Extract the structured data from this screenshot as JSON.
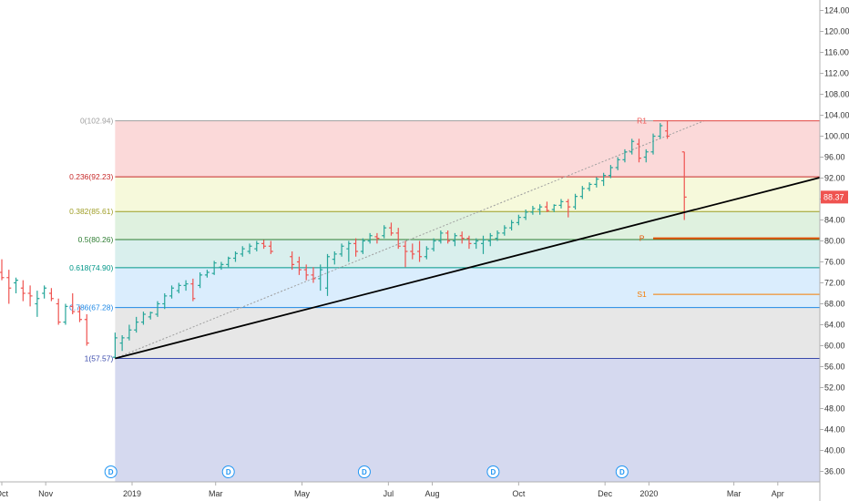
{
  "chart_data": {
    "type": "ohlc",
    "ylim": [
      34,
      126
    ],
    "y_ticks": [
      "36.00",
      "40.00",
      "44.00",
      "48.00",
      "52.00",
      "56.00",
      "60.00",
      "64.00",
      "68.00",
      "72.00",
      "76.00",
      "80.00",
      "84.00",
      "88.00",
      "92.00",
      "96.00",
      "100.00",
      "104.00",
      "108.00",
      "112.00",
      "116.00",
      "120.00",
      "124.00"
    ],
    "x_ticks": [
      {
        "label": "Oct",
        "x": 0
      },
      {
        "label": "Nov",
        "x": 31
      },
      {
        "label": "2019",
        "x": 92
      },
      {
        "label": "Mar",
        "x": 151
      },
      {
        "label": "May",
        "x": 212
      },
      {
        "label": "Jul",
        "x": 273
      },
      {
        "label": "Aug",
        "x": 304
      },
      {
        "label": "Oct",
        "x": 365
      },
      {
        "label": "Dec",
        "x": 426
      },
      {
        "label": "2020",
        "x": 457
      },
      {
        "label": "Mar",
        "x": 517
      },
      {
        "label": "Apr",
        "x": 548
      }
    ],
    "x_max": 579,
    "current_price": "88.37",
    "current_price_color": "#ef5350",
    "fib_retracement": {
      "x_start": 80,
      "levels": [
        {
          "ratio": 0,
          "price": 102.94,
          "label": "0(102.94)",
          "color": "#9e9e9e",
          "fill": "rgba(239,83,80,0.22)"
        },
        {
          "ratio": 0.236,
          "price": 92.23,
          "label": "0.236(92.23)",
          "color": "#c62828",
          "fill": "rgba(205,220,57,0.18)"
        },
        {
          "ratio": 0.382,
          "price": 85.61,
          "label": "0.382(85.61)",
          "color": "#9e9d24",
          "fill": "rgba(76,175,80,0.18)"
        },
        {
          "ratio": 0.5,
          "price": 80.26,
          "label": "0.5(80.26)",
          "color": "#2e7d32",
          "fill": "rgba(0,150,136,0.15)"
        },
        {
          "ratio": 0.618,
          "price": 74.9,
          "label": "0.618(74.90)",
          "color": "#009688",
          "fill": "rgba(33,150,243,0.17)"
        },
        {
          "ratio": 0.786,
          "price": 67.28,
          "label": "0.786(67.28)",
          "color": "#1e88e5",
          "fill": "rgba(120,120,120,0.18)"
        },
        {
          "ratio": 1,
          "price": 57.57,
          "label": "1(57.57)",
          "color": "#3949ab",
          "fill": "rgba(63,81,181,0.22)"
        }
      ]
    },
    "trendline": {
      "x1": 80,
      "y1": 57.57,
      "x2": 585,
      "y2": 92.6,
      "color": "#000000"
    },
    "diagonal": {
      "x1": 80,
      "y1": 57.57,
      "x2": 496,
      "y2": 102.94,
      "color": "#9e9e9e"
    },
    "pivots": [
      {
        "label": "R1",
        "price": 102.94,
        "x": 452,
        "x_line_start": 460,
        "color": "#ef5350",
        "width": 1
      },
      {
        "label": "P",
        "price": 80.5,
        "x": 452,
        "x_line_start": 460,
        "color": "#e65100",
        "width": 2
      },
      {
        "label": "S1",
        "price": 69.8,
        "x": 452,
        "x_line_start": 460,
        "color": "#f57c00",
        "width": 1
      }
    ],
    "dividends": [
      {
        "label": "D",
        "x": 77
      },
      {
        "label": "D",
        "x": 160
      },
      {
        "label": "D",
        "x": 256
      },
      {
        "label": "D",
        "x": 347
      },
      {
        "label": "D",
        "x": 438
      }
    ],
    "candles": [
      {
        "x": 0,
        "o": 74,
        "h": 76.5,
        "l": 72.5,
        "c": 73
      },
      {
        "x": 5,
        "o": 73,
        "h": 74.5,
        "l": 68,
        "c": 71
      },
      {
        "x": 10,
        "o": 72,
        "h": 73,
        "l": 70,
        "c": 72.5
      },
      {
        "x": 15,
        "o": 71,
        "h": 72.5,
        "l": 68.5,
        "c": 70
      },
      {
        "x": 20,
        "o": 70,
        "h": 71.5,
        "l": 67.5,
        "c": 69.5
      },
      {
        "x": 25,
        "o": 68,
        "h": 70.5,
        "l": 65.5,
        "c": 69
      },
      {
        "x": 30,
        "o": 70,
        "h": 71.5,
        "l": 69,
        "c": 71
      },
      {
        "x": 35,
        "o": 70,
        "h": 71,
        "l": 68.5,
        "c": 69
      },
      {
        "x": 40,
        "o": 68,
        "h": 69,
        "l": 64,
        "c": 64.5
      },
      {
        "x": 45,
        "o": 64.5,
        "h": 68,
        "l": 64,
        "c": 67.5
      },
      {
        "x": 50,
        "o": 67.5,
        "h": 70,
        "l": 66,
        "c": 66.5
      },
      {
        "x": 55,
        "o": 66.5,
        "h": 67.5,
        "l": 64.5,
        "c": 65
      },
      {
        "x": 60,
        "o": 65,
        "h": 66,
        "l": 60,
        "c": 60.5
      },
      {
        "x": 80,
        "o": 57.8,
        "h": 62.5,
        "l": 57.6,
        "c": 61.5
      },
      {
        "x": 85,
        "o": 60.5,
        "h": 62,
        "l": 59,
        "c": 61.5
      },
      {
        "x": 90,
        "o": 61.5,
        "h": 64,
        "l": 61,
        "c": 63
      },
      {
        "x": 95,
        "o": 63,
        "h": 65.5,
        "l": 62.5,
        "c": 64.5
      },
      {
        "x": 100,
        "o": 64.5,
        "h": 66.5,
        "l": 64,
        "c": 66
      },
      {
        "x": 105,
        "o": 65.5,
        "h": 66.5,
        "l": 65,
        "c": 66.3
      },
      {
        "x": 110,
        "o": 66,
        "h": 68.5,
        "l": 65.5,
        "c": 68
      },
      {
        "x": 115,
        "o": 68,
        "h": 70,
        "l": 67,
        "c": 69.5
      },
      {
        "x": 120,
        "o": 69.5,
        "h": 71.5,
        "l": 69,
        "c": 71
      },
      {
        "x": 125,
        "o": 70.5,
        "h": 72,
        "l": 70,
        "c": 71.5
      },
      {
        "x": 130,
        "o": 71.5,
        "h": 72.5,
        "l": 70.5,
        "c": 71.8
      },
      {
        "x": 135,
        "o": 71.8,
        "h": 72.8,
        "l": 68.5,
        "c": 69
      },
      {
        "x": 140,
        "o": 71.5,
        "h": 74,
        "l": 71,
        "c": 73.5
      },
      {
        "x": 145,
        "o": 73.5,
        "h": 74.5,
        "l": 73,
        "c": 74
      },
      {
        "x": 150,
        "o": 73.8,
        "h": 76.2,
        "l": 73.5,
        "c": 75.8
      },
      {
        "x": 155,
        "o": 75,
        "h": 76,
        "l": 74.5,
        "c": 75.5
      },
      {
        "x": 160,
        "o": 75.5,
        "h": 77,
        "l": 75,
        "c": 76.7
      },
      {
        "x": 165,
        "o": 76.7,
        "h": 78,
        "l": 76,
        "c": 77.6
      },
      {
        "x": 170,
        "o": 77.5,
        "h": 79,
        "l": 77,
        "c": 78.5
      },
      {
        "x": 175,
        "o": 78,
        "h": 79.5,
        "l": 77.5,
        "c": 79
      },
      {
        "x": 180,
        "o": 78.5,
        "h": 80,
        "l": 78,
        "c": 79.5
      },
      {
        "x": 185,
        "o": 79.5,
        "h": 80.2,
        "l": 78.5,
        "c": 79
      },
      {
        "x": 190,
        "o": 79,
        "h": 80,
        "l": 77.5,
        "c": 78
      },
      {
        "x": 205,
        "o": 77,
        "h": 78,
        "l": 74.5,
        "c": 75.5
      },
      {
        "x": 210,
        "o": 76,
        "h": 77,
        "l": 73.5,
        "c": 74.5
      },
      {
        "x": 215,
        "o": 74.5,
        "h": 75.5,
        "l": 72.5,
        "c": 73.5
      },
      {
        "x": 220,
        "o": 73.5,
        "h": 75,
        "l": 72,
        "c": 72.8
      },
      {
        "x": 225,
        "o": 72.8,
        "h": 75.5,
        "l": 70.5,
        "c": 74.5
      },
      {
        "x": 230,
        "o": 71,
        "h": 77.5,
        "l": 69.5,
        "c": 77
      },
      {
        "x": 235,
        "o": 76.5,
        "h": 78,
        "l": 75.5,
        "c": 77.5
      },
      {
        "x": 240,
        "o": 77.5,
        "h": 79.5,
        "l": 77,
        "c": 79
      },
      {
        "x": 245,
        "o": 78.5,
        "h": 80,
        "l": 76,
        "c": 79.5
      },
      {
        "x": 250,
        "o": 79.5,
        "h": 80.5,
        "l": 77,
        "c": 78
      },
      {
        "x": 255,
        "o": 78,
        "h": 80.5,
        "l": 77.5,
        "c": 80
      },
      {
        "x": 260,
        "o": 80,
        "h": 81.5,
        "l": 79.5,
        "c": 81
      },
      {
        "x": 265,
        "o": 80.8,
        "h": 81.5,
        "l": 79.5,
        "c": 80.5
      },
      {
        "x": 270,
        "o": 81,
        "h": 83,
        "l": 80.5,
        "c": 82.5
      },
      {
        "x": 275,
        "o": 82.5,
        "h": 83.5,
        "l": 81,
        "c": 81.5
      },
      {
        "x": 280,
        "o": 81.5,
        "h": 82.5,
        "l": 78.5,
        "c": 79
      },
      {
        "x": 285,
        "o": 79,
        "h": 80,
        "l": 75,
        "c": 78
      },
      {
        "x": 290,
        "o": 78,
        "h": 79.5,
        "l": 76.5,
        "c": 77.5
      },
      {
        "x": 295,
        "o": 78,
        "h": 80,
        "l": 76,
        "c": 77
      },
      {
        "x": 300,
        "o": 77,
        "h": 79,
        "l": 76.5,
        "c": 78.5
      },
      {
        "x": 305,
        "o": 78.5,
        "h": 80.5,
        "l": 78,
        "c": 80
      },
      {
        "x": 310,
        "o": 80,
        "h": 82,
        "l": 79.5,
        "c": 81.5
      },
      {
        "x": 315,
        "o": 81.5,
        "h": 82,
        "l": 79.5,
        "c": 80
      },
      {
        "x": 320,
        "o": 80,
        "h": 81.5,
        "l": 79,
        "c": 81
      },
      {
        "x": 325,
        "o": 81,
        "h": 81.8,
        "l": 79.5,
        "c": 80.5
      },
      {
        "x": 330,
        "o": 80.5,
        "h": 81,
        "l": 78.5,
        "c": 79.5
      },
      {
        "x": 335,
        "o": 79.5,
        "h": 80.5,
        "l": 78.5,
        "c": 80
      },
      {
        "x": 340,
        "o": 79.5,
        "h": 81,
        "l": 77.5,
        "c": 80.2
      },
      {
        "x": 345,
        "o": 80,
        "h": 81.5,
        "l": 79,
        "c": 81
      },
      {
        "x": 350,
        "o": 80.5,
        "h": 82,
        "l": 80,
        "c": 81.5
      },
      {
        "x": 355,
        "o": 81.5,
        "h": 83,
        "l": 81,
        "c": 82.5
      },
      {
        "x": 360,
        "o": 82.5,
        "h": 84,
        "l": 82,
        "c": 83.5
      },
      {
        "x": 365,
        "o": 83.5,
        "h": 85,
        "l": 83,
        "c": 84.5
      },
      {
        "x": 370,
        "o": 84.5,
        "h": 86,
        "l": 84,
        "c": 85.5
      },
      {
        "x": 375,
        "o": 85.5,
        "h": 86.7,
        "l": 85,
        "c": 86.2
      },
      {
        "x": 380,
        "o": 86,
        "h": 87,
        "l": 85,
        "c": 86.5
      },
      {
        "x": 385,
        "o": 86.5,
        "h": 87.5,
        "l": 85.5,
        "c": 85.8
      },
      {
        "x": 390,
        "o": 86,
        "h": 87,
        "l": 85.5,
        "c": 86.8
      },
      {
        "x": 395,
        "o": 86.8,
        "h": 88,
        "l": 86.2,
        "c": 87.5
      },
      {
        "x": 400,
        "o": 87.5,
        "h": 88,
        "l": 84.5,
        "c": 86.5
      },
      {
        "x": 405,
        "o": 86.5,
        "h": 89,
        "l": 86,
        "c": 88.5
      },
      {
        "x": 410,
        "o": 88.5,
        "h": 90.5,
        "l": 88,
        "c": 90
      },
      {
        "x": 415,
        "o": 90,
        "h": 91.2,
        "l": 89.5,
        "c": 90.8
      },
      {
        "x": 420,
        "o": 90.8,
        "h": 92.2,
        "l": 90.2,
        "c": 91.8
      },
      {
        "x": 425,
        "o": 91.5,
        "h": 93,
        "l": 90.5,
        "c": 92.5
      },
      {
        "x": 430,
        "o": 92.5,
        "h": 94.5,
        "l": 92,
        "c": 94
      },
      {
        "x": 435,
        "o": 94,
        "h": 96,
        "l": 93.5,
        "c": 95.5
      },
      {
        "x": 440,
        "o": 95.5,
        "h": 97.5,
        "l": 95,
        "c": 97
      },
      {
        "x": 445,
        "o": 97,
        "h": 99.5,
        "l": 96.5,
        "c": 99
      },
      {
        "x": 450,
        "o": 98.5,
        "h": 99.5,
        "l": 95,
        "c": 95.8
      },
      {
        "x": 455,
        "o": 96,
        "h": 97.5,
        "l": 95,
        "c": 97
      },
      {
        "x": 460,
        "o": 97,
        "h": 100.5,
        "l": 96.5,
        "c": 100
      },
      {
        "x": 465,
        "o": 100,
        "h": 102.5,
        "l": 99.5,
        "c": 102
      },
      {
        "x": 470,
        "o": 101,
        "h": 103,
        "l": 99.5,
        "c": 100
      },
      {
        "x": 482,
        "o": 97,
        "h": 97,
        "l": 84,
        "c": 88.37
      }
    ]
  }
}
